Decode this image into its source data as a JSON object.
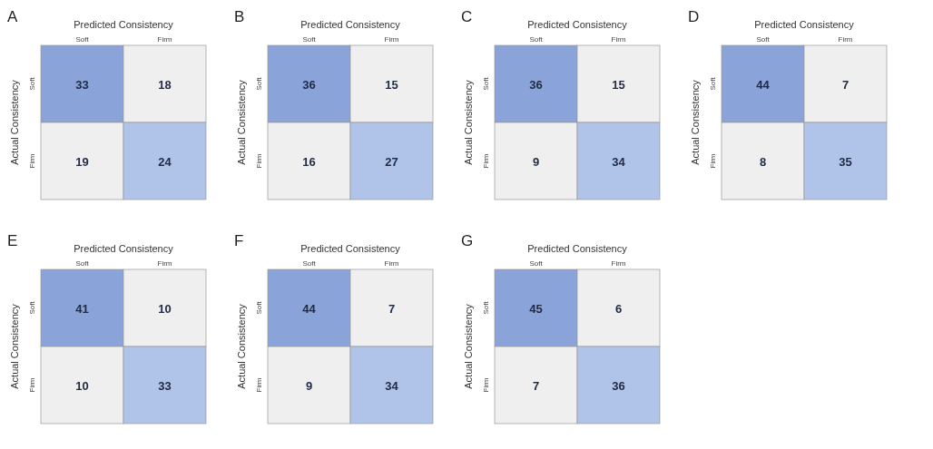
{
  "chart_data": [
    {
      "type": "heatmap",
      "title": "A",
      "xlabel": "Predicted Consistency",
      "ylabel": "Actual Consistency",
      "categories": [
        "Soft",
        "Firm"
      ],
      "y_categories": [
        "Soft",
        "Firm"
      ],
      "cells": [
        [
          33,
          18
        ],
        [
          19,
          24
        ]
      ],
      "colors": [
        "#8aa3d8",
        "#efefef",
        "#efefef",
        "#b0c3e8"
      ],
      "data_labels": true
    },
    {
      "type": "heatmap",
      "title": "B",
      "xlabel": "Predicted Consistency",
      "ylabel": "Actual Consistency",
      "categories": [
        "Soft",
        "Firm"
      ],
      "y_categories": [
        "Soft",
        "Firm"
      ],
      "cells": [
        [
          36,
          15
        ],
        [
          16,
          27
        ]
      ],
      "colors": [
        "#8aa3d8",
        "#efefef",
        "#efefef",
        "#b0c3e8"
      ],
      "data_labels": true
    },
    {
      "type": "heatmap",
      "title": "C",
      "xlabel": "Predicted Consistency",
      "ylabel": "Actual Consistency",
      "categories": [
        "Soft",
        "Firm"
      ],
      "y_categories": [
        "Soft",
        "Firm"
      ],
      "cells": [
        [
          36,
          15
        ],
        [
          9,
          34
        ]
      ],
      "colors": [
        "#8aa3d8",
        "#efefef",
        "#efefef",
        "#b0c3e8"
      ],
      "data_labels": true
    },
    {
      "type": "heatmap",
      "title": "D",
      "xlabel": "Predicted Consistency",
      "ylabel": "Actual Consistency",
      "categories": [
        "Soft",
        "Firm"
      ],
      "y_categories": [
        "Soft",
        "Firm"
      ],
      "cells": [
        [
          44,
          7
        ],
        [
          8,
          35
        ]
      ],
      "colors": [
        "#8aa3d8",
        "#efefef",
        "#efefef",
        "#b0c3e8"
      ],
      "data_labels": true
    },
    {
      "type": "heatmap",
      "title": "E",
      "xlabel": "Predicted Consistency",
      "ylabel": "Actual Consistency",
      "categories": [
        "Soft",
        "Firm"
      ],
      "y_categories": [
        "Soft",
        "Firm"
      ],
      "cells": [
        [
          41,
          10
        ],
        [
          10,
          33
        ]
      ],
      "colors": [
        "#8aa3d8",
        "#efefef",
        "#efefef",
        "#b0c3e8"
      ],
      "data_labels": true
    },
    {
      "type": "heatmap",
      "title": "F",
      "xlabel": "Predicted Consistency",
      "ylabel": "Actual Consistency",
      "categories": [
        "Soft",
        "Firm"
      ],
      "y_categories": [
        "Soft",
        "Firm"
      ],
      "cells": [
        [
          44,
          7
        ],
        [
          9,
          34
        ]
      ],
      "colors": [
        "#8aa3d8",
        "#efefef",
        "#efefef",
        "#b0c3e8"
      ],
      "data_labels": true
    },
    {
      "type": "heatmap",
      "title": "G",
      "xlabel": "Predicted Consistency",
      "ylabel": "Actual Consistency",
      "categories": [
        "Soft",
        "Firm"
      ],
      "y_categories": [
        "Soft",
        "Firm"
      ],
      "cells": [
        [
          45,
          6
        ],
        [
          7,
          36
        ]
      ],
      "colors": [
        "#8aa3d8",
        "#efefef",
        "#efefef",
        "#b0c3e8"
      ],
      "data_labels": true
    }
  ]
}
